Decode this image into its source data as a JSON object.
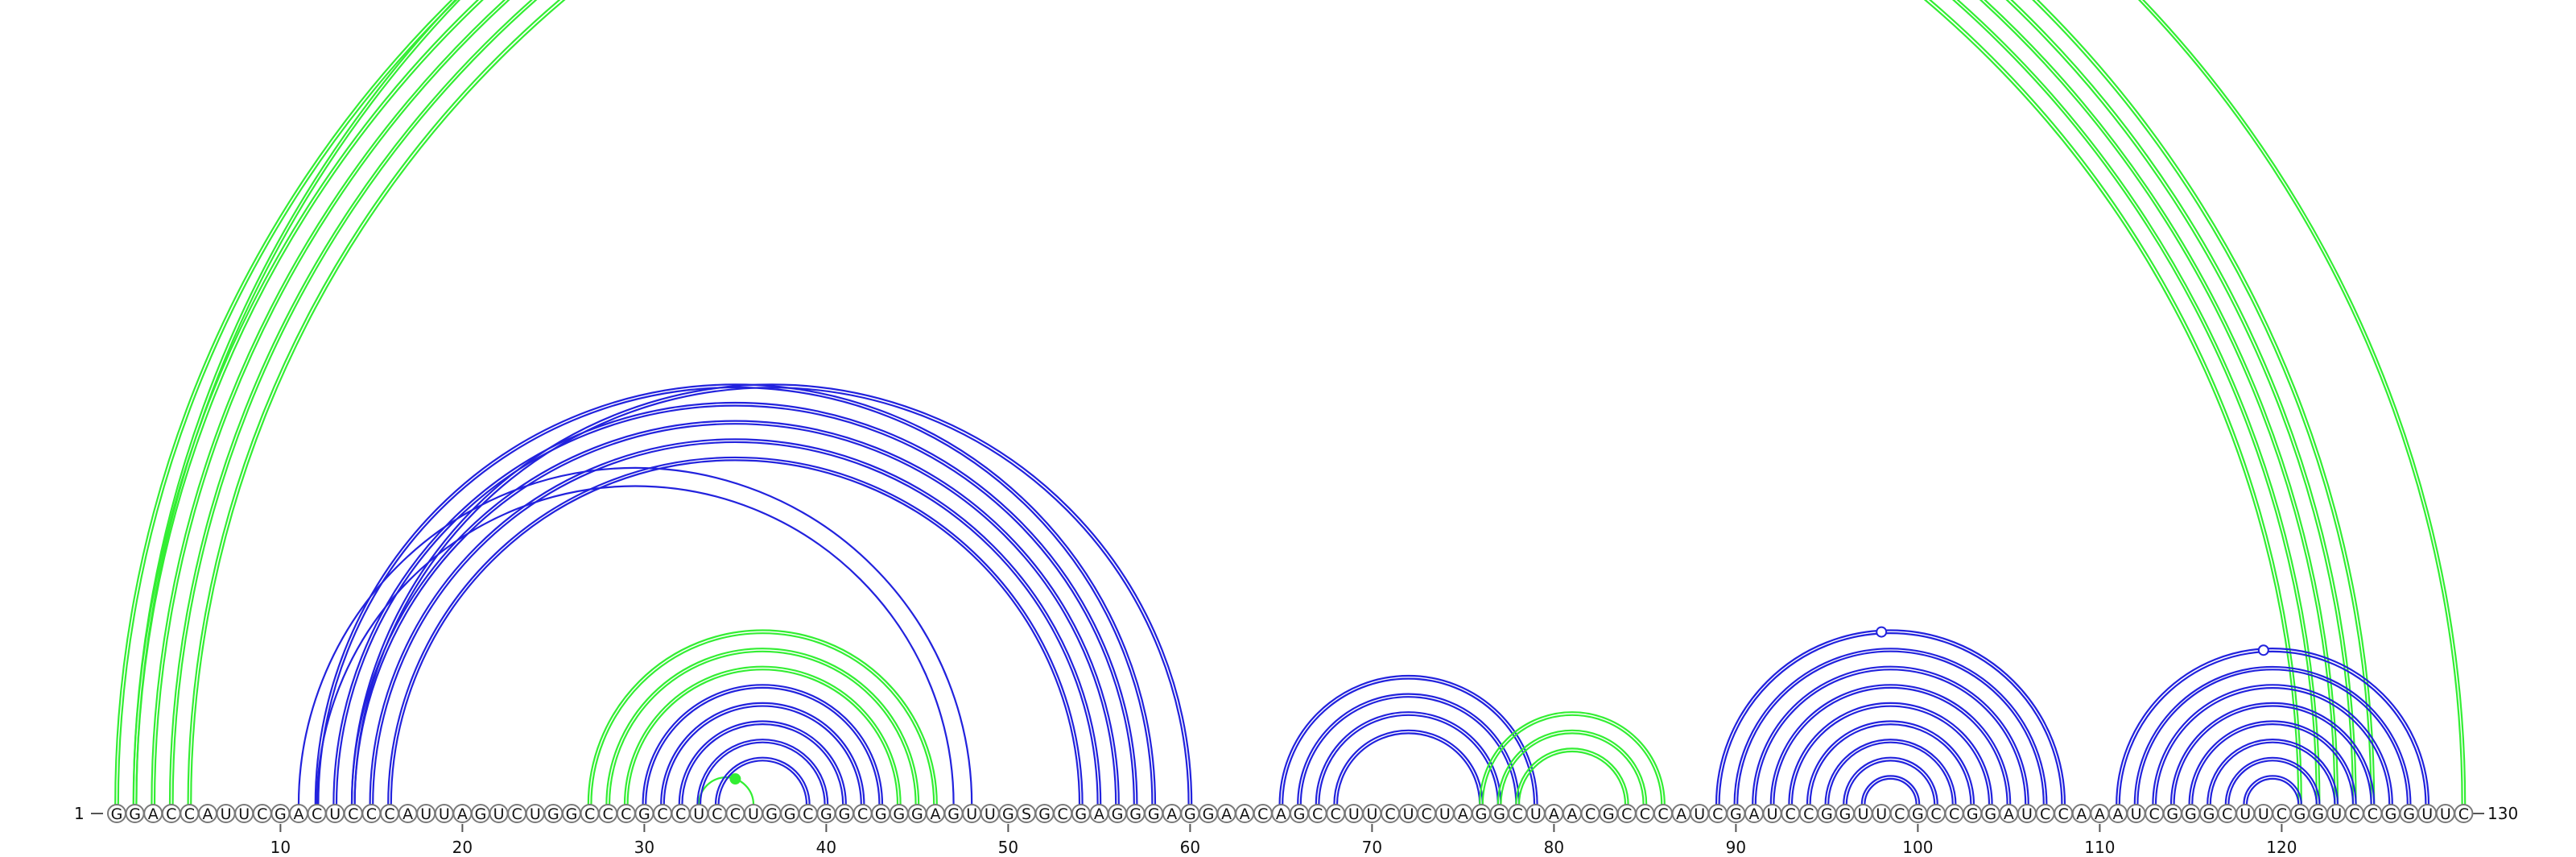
{
  "diagram": {
    "sequence": "GGACCAUUCGACUCCCAUUAGUCUGGCCCGCCUCCUGGCGGCGGGAGUUGSGCGAGGGAGGAACAGCCUUCUCUAGGCUAACGCCCAUCGAUCCGGUUCGCCGGAUCCAAAUCGGGCUUCGGUCCGGUUC",
    "start_label": "1",
    "end_label": "130",
    "ticks": [
      "10",
      "20",
      "30",
      "40",
      "50",
      "60",
      "70",
      "80",
      "90",
      "100",
      "110",
      "120"
    ],
    "colors": {
      "green": "#33ee33",
      "blue": "#2222dd"
    },
    "arc_groups": [
      {
        "color": "green",
        "i": [
          1,
          2,
          3,
          4,
          5
        ],
        "j": [
          125,
          124,
          123,
          122,
          121
        ],
        "double": true
      },
      {
        "color": "green",
        "i": [
          2
        ],
        "j": [
          130
        ],
        "double": true,
        "marker": 66
      },
      {
        "color": "green",
        "i": [
          27,
          28,
          29
        ],
        "j": [
          46,
          45,
          44
        ],
        "double": true
      },
      {
        "color": "green",
        "i": [
          33
        ],
        "j": [
          36
        ],
        "double": false,
        "marker_filled": 35
      },
      {
        "color": "blue",
        "i": [
          12,
          13,
          14,
          15,
          16
        ],
        "j": [
          58,
          57,
          56,
          55,
          54
        ],
        "double": true
      },
      {
        "color": "blue",
        "i": [
          14
        ],
        "j": [
          60
        ],
        "double": true
      },
      {
        "color": "blue",
        "i": [
          11,
          12
        ],
        "j": [
          48,
          47
        ],
        "double": false
      },
      {
        "color": "blue",
        "i": [
          30,
          31,
          32,
          33
        ],
        "j": [
          43,
          42,
          41,
          40
        ],
        "double": true
      },
      {
        "color": "blue",
        "i": [
          34
        ],
        "j": [
          39
        ],
        "double": true
      },
      {
        "color": "blue",
        "i": [
          65,
          66,
          67,
          68
        ],
        "j": [
          79,
          78,
          77,
          76
        ],
        "double": true
      },
      {
        "color": "green",
        "i": [
          76,
          77,
          78
        ],
        "j": [
          86,
          85,
          84
        ],
        "double": true
      },
      {
        "color": "blue",
        "i": [
          89,
          90,
          91,
          92,
          93,
          94,
          95,
          96,
          97
        ],
        "j": [
          108,
          107,
          106,
          105,
          104,
          103,
          102,
          101,
          100
        ],
        "double": true,
        "marker": 98
      },
      {
        "color": "blue",
        "i": [
          111,
          112,
          113,
          114,
          115,
          116,
          117,
          118
        ],
        "j": [
          128,
          127,
          126,
          125,
          124,
          123,
          122,
          121
        ],
        "double": true,
        "marker": 119
      }
    ]
  }
}
